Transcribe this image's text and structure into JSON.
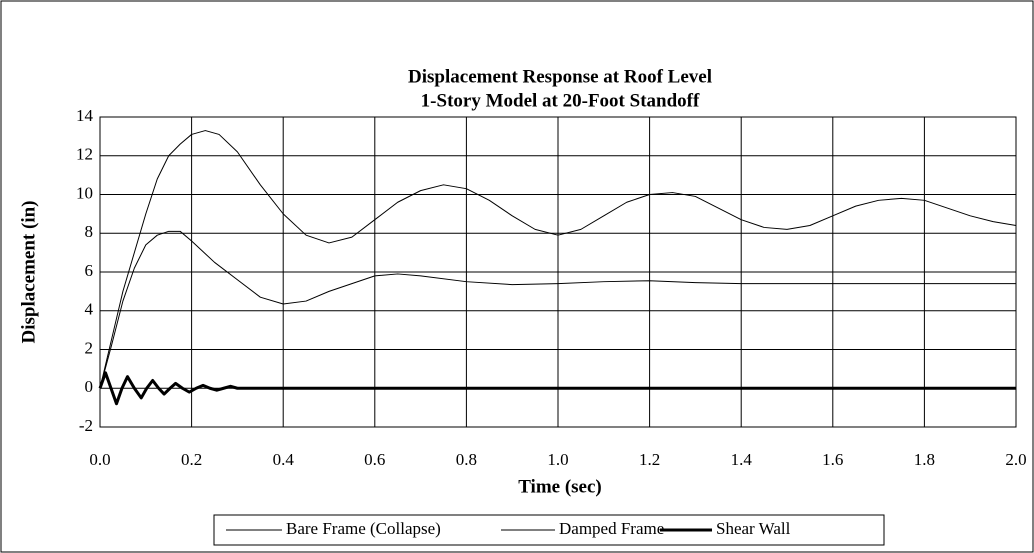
{
  "chart_data": {
    "type": "line",
    "title": "Displacement Response at Roof Level",
    "subtitle": "1-Story Model at 20-Foot Standoff",
    "x_label": "Time (sec)",
    "y_label": "Displacement (in)",
    "xlim": [
      0,
      2
    ],
    "ylim": [
      -2,
      14
    ],
    "xticks": [
      {
        "value": 0,
        "label": "0.0"
      },
      0.2,
      0.4,
      0.6,
      0.8,
      {
        "value": 1,
        "label": "1.0"
      },
      1.2,
      1.4,
      1.6,
      1.8,
      {
        "value": 2,
        "label": "2.0"
      }
    ],
    "yticks": [
      -2,
      0,
      2,
      4,
      6,
      8,
      10,
      12,
      14
    ],
    "grid": true,
    "legend": "bottom",
    "series": [
      {
        "name": "Bare Frame (Collapse)",
        "color": "#000000",
        "width": 1,
        "x": [
          0,
          0.025,
          0.05,
          0.075,
          0.1,
          0.125,
          0.15,
          0.175,
          0.2,
          0.23,
          0.26,
          0.3,
          0.35,
          0.4,
          0.45,
          0.5,
          0.55,
          0.6,
          0.65,
          0.7,
          0.75,
          0.8,
          0.85,
          0.9,
          0.95,
          1.0,
          1.05,
          1.1,
          1.15,
          1.2,
          1.25,
          1.3,
          1.35,
          1.4,
          1.45,
          1.5,
          1.55,
          1.6,
          1.65,
          1.7,
          1.75,
          1.8,
          1.85,
          1.9,
          1.95,
          2.0
        ],
        "values": [
          0,
          2.5,
          5,
          7,
          9,
          10.8,
          12,
          12.6,
          13.1,
          13.3,
          13.1,
          12.2,
          10.5,
          9,
          7.9,
          7.5,
          7.8,
          8.7,
          9.6,
          10.2,
          10.5,
          10.3,
          9.7,
          8.9,
          8.2,
          7.9,
          8.2,
          8.9,
          9.6,
          10,
          10.1,
          9.9,
          9.3,
          8.7,
          8.3,
          8.2,
          8.4,
          8.9,
          9.4,
          9.7,
          9.8,
          9.7,
          9.3,
          8.9,
          8.6,
          8.4
        ]
      },
      {
        "name": "Damped Frame",
        "color": "#000000",
        "width": 1,
        "x": [
          0,
          0.025,
          0.05,
          0.075,
          0.1,
          0.125,
          0.15,
          0.175,
          0.2,
          0.25,
          0.3,
          0.35,
          0.4,
          0.45,
          0.5,
          0.55,
          0.6,
          0.65,
          0.7,
          0.8,
          0.9,
          1.0,
          1.1,
          1.2,
          1.3,
          1.4,
          1.6,
          1.8,
          2.0
        ],
        "values": [
          0,
          2.2,
          4.5,
          6.2,
          7.4,
          7.9,
          8.1,
          8.1,
          7.6,
          6.5,
          5.6,
          4.7,
          4.35,
          4.5,
          5,
          5.4,
          5.8,
          5.9,
          5.8,
          5.5,
          5.35,
          5.4,
          5.5,
          5.55,
          5.45,
          5.4,
          5.4,
          5.4,
          5.4
        ]
      },
      {
        "name": "Shear Wall",
        "color": "#000000",
        "width": 3,
        "x": [
          0,
          0.012,
          0.024,
          0.036,
          0.048,
          0.06,
          0.075,
          0.09,
          0.102,
          0.115,
          0.128,
          0.14,
          0.153,
          0.165,
          0.18,
          0.195,
          0.21,
          0.225,
          0.24,
          0.255,
          0.27,
          0.285,
          0.3,
          0.33,
          2.0
        ],
        "values": [
          0,
          0.8,
          0,
          -0.8,
          0,
          0.6,
          0,
          -0.5,
          0,
          0.4,
          0,
          -0.3,
          0,
          0.25,
          0,
          -0.2,
          0,
          0.15,
          0,
          -0.1,
          0,
          0.1,
          0,
          0,
          0
        ]
      }
    ]
  }
}
